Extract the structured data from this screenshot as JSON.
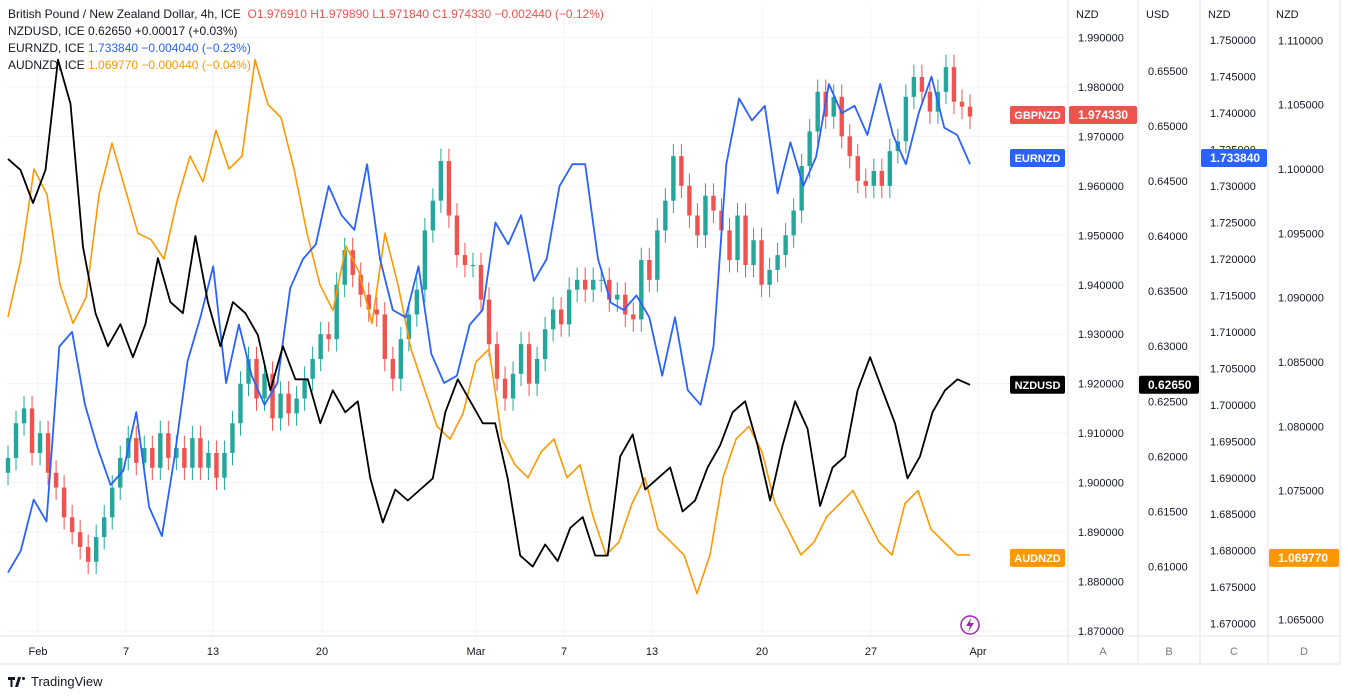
{
  "legend": {
    "main": {
      "name": "British Pound / New Zealand Dollar, 4h, ICE",
      "o_label": "O",
      "o": "1.976910",
      "h_label": "H",
      "h": "1.979890",
      "l_label": "L",
      "l": "1.971840",
      "c_label": "C",
      "c": "1.974330",
      "chg": "−0.002440 (−0.12%)"
    },
    "series": [
      {
        "name": "NZDUSD, ICE",
        "value": "0.62650",
        "chg": "+0.00017 (+0.03%)"
      },
      {
        "name": "EURNZD, ICE",
        "value": "1.733840",
        "chg": "−0.004040 (−0.23%)"
      },
      {
        "name": "AUDNZD, ICE",
        "value": "1.069770",
        "chg": "−0.000440 (−0.04%)"
      }
    ]
  },
  "colors": {
    "gbpnzd_up": "#26a69a",
    "gbpnzd_down": "#ef5350",
    "nzdusd": "#000000",
    "eurnzd": "#2962ff",
    "audnzd": "#ff9800",
    "grid": "#f0f3fa",
    "axis_text": "#131722"
  },
  "footer": {
    "brand": "TradingView"
  },
  "chart_data": {
    "type": "line",
    "x_ticks": [
      "Feb",
      "7",
      "13",
      "20",
      "Mar",
      "7",
      "13",
      "20",
      "27",
      "Apr"
    ],
    "axes": [
      {
        "id": "A",
        "unit": "NZD",
        "series": "GBPNZD",
        "ticks": [
          "1.990000",
          "1.980000",
          "1.970000",
          "1.960000",
          "1.950000",
          "1.940000",
          "1.930000",
          "1.920000",
          "1.910000",
          "1.900000",
          "1.890000",
          "1.880000",
          "1.870000"
        ],
        "range": [
          1.869,
          1.9915
        ]
      },
      {
        "id": "B",
        "unit": "USD",
        "series": "NZDUSD",
        "ticks": [
          "0.65500",
          "0.65000",
          "0.64500",
          "0.64000",
          "0.63500",
          "0.63000",
          "0.62500",
          "0.62000",
          "0.61500",
          "0.61000"
        ],
        "range": [
          0.6037,
          0.6587
        ]
      },
      {
        "id": "C",
        "unit": "NZD",
        "series": "EURNZD",
        "ticks": [
          "1.750000",
          "1.745000",
          "1.740000",
          "1.735000",
          "1.730000",
          "1.725000",
          "1.720000",
          "1.715000",
          "1.710000",
          "1.705000",
          "1.700000",
          "1.695000",
          "1.690000",
          "1.685000",
          "1.680000",
          "1.675000",
          "1.670000"
        ],
        "range": [
          1.6683,
          1.7514
        ]
      },
      {
        "id": "D",
        "unit": "NZD",
        "series": "AUDNZD",
        "ticks": [
          "1.110000",
          "1.105000",
          "1.100000",
          "1.095000",
          "1.090000",
          "1.085000",
          "1.080000",
          "1.075000",
          "1.070000",
          "1.065000"
        ],
        "range": [
          1.0637,
          1.1108
        ]
      }
    ],
    "price_labels": [
      {
        "series": "GBPNZD",
        "tag": "GBPNZD",
        "value": "1.974330",
        "axis": "A"
      },
      {
        "series": "EURNZD",
        "tag": "EURNZD",
        "value": "1.733840",
        "axis": "C"
      },
      {
        "series": "NZDUSD",
        "tag": "NZDUSD",
        "value": "0.62650",
        "axis": "B"
      },
      {
        "series": "AUDNZD",
        "tag": "AUDNZD",
        "value": "1.069770",
        "axis": "D"
      }
    ],
    "gbpnzd_close": [
      1.905,
      1.912,
      1.915,
      1.906,
      1.91,
      1.902,
      1.899,
      1.893,
      1.89,
      1.887,
      1.884,
      1.889,
      1.893,
      1.899,
      1.905,
      1.909,
      1.904,
      1.907,
      1.903,
      1.91,
      1.905,
      1.907,
      1.903,
      1.909,
      1.903,
      1.906,
      1.901,
      1.906,
      1.912,
      1.92,
      1.925,
      1.917,
      1.922,
      1.913,
      1.918,
      1.914,
      1.917,
      1.921,
      1.925,
      1.93,
      1.929,
      1.94,
      1.947,
      1.942,
      1.938,
      1.935,
      1.934,
      1.925,
      1.921,
      1.929,
      1.934,
      1.939,
      1.951,
      1.957,
      1.965,
      1.954,
      1.946,
      1.944,
      1.944,
      1.937,
      1.928,
      1.921,
      1.917,
      1.922,
      1.928,
      1.92,
      1.925,
      1.931,
      1.935,
      1.932,
      1.939,
      1.941,
      1.939,
      1.941,
      1.941,
      1.937,
      1.938,
      1.934,
      1.933,
      1.945,
      1.941,
      1.951,
      1.957,
      1.966,
      1.96,
      1.954,
      1.95,
      1.958,
      1.955,
      1.951,
      1.945,
      1.954,
      1.944,
      1.949,
      1.94,
      1.943,
      1.946,
      1.95,
      1.955,
      1.964,
      1.971,
      1.979,
      1.974,
      1.978,
      1.97,
      1.966,
      1.961,
      1.96,
      1.963,
      1.96,
      1.967,
      1.969,
      1.978,
      1.982,
      1.979,
      1.975,
      1.979,
      1.984,
      1.977,
      1.976,
      1.974
    ],
    "nzdusd": [
      0.647,
      0.646,
      0.643,
      0.646,
      0.656,
      0.652,
      0.639,
      0.633,
      0.63,
      0.632,
      0.629,
      0.632,
      0.638,
      0.634,
      0.633,
      0.64,
      0.634,
      0.63,
      0.634,
      0.633,
      0.631,
      0.626,
      0.63,
      0.627,
      0.627,
      0.623,
      0.626,
      0.624,
      0.625,
      0.618,
      0.614,
      0.617,
      0.616,
      0.617,
      0.618,
      0.624,
      0.627,
      0.625,
      0.623,
      0.623,
      0.618,
      0.611,
      0.61,
      0.612,
      0.6105,
      0.6135,
      0.6145,
      0.611,
      0.611,
      0.62,
      0.622,
      0.617,
      0.618,
      0.619,
      0.615,
      0.616,
      0.619,
      0.621,
      0.624,
      0.625,
      0.621,
      0.616,
      0.621,
      0.625,
      0.6225,
      0.6155,
      0.619,
      0.62,
      0.626,
      0.629,
      0.626,
      0.623,
      0.618,
      0.62,
      0.624,
      0.626,
      0.627,
      0.6265
    ],
    "eurnzd": [
      1.677,
      1.68,
      1.687,
      1.684,
      1.708,
      1.71,
      1.7,
      1.694,
      1.689,
      1.691,
      1.699,
      1.686,
      1.682,
      1.693,
      1.706,
      1.712,
      1.719,
      1.703,
      1.711,
      1.704,
      1.7,
      1.703,
      1.716,
      1.72,
      1.722,
      1.73,
      1.726,
      1.724,
      1.733,
      1.72,
      1.713,
      1.712,
      1.719,
      1.707,
      1.703,
      1.704,
      1.711,
      1.713,
      1.725,
      1.722,
      1.726,
      1.717,
      1.72,
      1.73,
      1.733,
      1.733,
      1.72,
      1.714,
      1.713,
      1.715,
      1.712,
      1.704,
      1.712,
      1.702,
      1.7,
      1.708,
      1.733,
      1.742,
      1.739,
      1.741,
      1.729,
      1.736,
      1.73,
      1.734,
      1.744,
      1.74,
      1.741,
      1.737,
      1.744,
      1.737,
      1.733,
      1.74,
      1.745,
      1.738,
      1.737,
      1.733
    ],
    "audnzd": [
      1.0885,
      1.093,
      1.1,
      1.098,
      1.091,
      1.088,
      1.09,
      1.098,
      1.102,
      1.0985,
      1.095,
      1.0945,
      1.093,
      1.0975,
      1.101,
      1.099,
      1.103,
      1.1,
      1.101,
      1.1085,
      1.105,
      1.104,
      1.1,
      1.095,
      1.091,
      1.089,
      1.094,
      1.092,
      1.088,
      1.095,
      1.091,
      1.086,
      1.083,
      1.08,
      1.079,
      1.081,
      1.085,
      1.086,
      1.079,
      1.077,
      1.076,
      1.078,
      1.079,
      1.076,
      1.077,
      1.073,
      1.07,
      1.071,
      1.074,
      1.076,
      1.072,
      1.071,
      1.07,
      1.067,
      1.07,
      1.076,
      1.079,
      1.08,
      1.078,
      1.074,
      1.072,
      1.07,
      1.071,
      1.073,
      1.074,
      1.075,
      1.073,
      1.071,
      1.07,
      1.074,
      1.075,
      1.072,
      1.071,
      1.07,
      1.07
    ]
  }
}
